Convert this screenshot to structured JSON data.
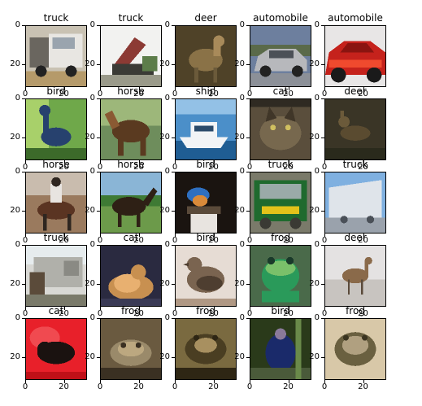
{
  "figure": {
    "x_ticks": [
      "0",
      "20"
    ],
    "y_ticks": [
      "0",
      "20"
    ],
    "panels": [
      {
        "title": "truck",
        "scene": "truck-white",
        "colors": [
          "#c9c2b3",
          "#e8e6e2",
          "#6a665f",
          "#b59a6a"
        ]
      },
      {
        "title": "truck",
        "scene": "dump-truck",
        "colors": [
          "#f2f2f0",
          "#8c3a34",
          "#5d7d4a",
          "#3b3b36"
        ]
      },
      {
        "title": "deer",
        "scene": "deer-brown",
        "colors": [
          "#6b5a3a",
          "#8a7247",
          "#4f4228",
          "#a88a5a"
        ]
      },
      {
        "title": "automobile",
        "scene": "car-silver",
        "colors": [
          "#6d7f9e",
          "#b7b8bc",
          "#4b5057",
          "#8c9098"
        ]
      },
      {
        "title": "automobile",
        "scene": "car-red",
        "colors": [
          "#e8e6e6",
          "#c5221c",
          "#8a1410",
          "#f04a2e"
        ]
      },
      {
        "title": "bird",
        "scene": "ostrich",
        "colors": [
          "#a8d06a",
          "#3c6a2a",
          "#27416e",
          "#6fa84a"
        ]
      },
      {
        "title": "horse",
        "scene": "horse-brown",
        "colors": [
          "#6e8d5c",
          "#5a3a20",
          "#8a5a33",
          "#9db77a"
        ]
      },
      {
        "title": "ship",
        "scene": "boat",
        "colors": [
          "#4b8fc9",
          "#f2f4f6",
          "#1f5d93",
          "#93c1e6"
        ]
      },
      {
        "title": "cat",
        "scene": "cat-dark",
        "colors": [
          "#5a4e3c",
          "#2f2a22",
          "#77684e",
          "#403628"
        ]
      },
      {
        "title": "deer",
        "scene": "deer-forest",
        "colors": [
          "#3a3526",
          "#5a4b30",
          "#2a2a1c",
          "#6b5a3a"
        ]
      },
      {
        "title": "horse",
        "scene": "rider",
        "colors": [
          "#c9bcae",
          "#5a3422",
          "#9a7a5e",
          "#2f2620"
        ]
      },
      {
        "title": "horse",
        "scene": "horse-field",
        "colors": [
          "#8ab5d6",
          "#3e7a34",
          "#2e2015",
          "#6c9a4a"
        ]
      },
      {
        "title": "bird",
        "scene": "bluebird",
        "colors": [
          "#1a1410",
          "#2e6fc0",
          "#d98a3a",
          "#5a4a3a"
        ]
      },
      {
        "title": "truck",
        "scene": "truck-green",
        "colors": [
          "#7a7a6a",
          "#1f6a2e",
          "#e3c21a",
          "#3a3a34"
        ]
      },
      {
        "title": "truck",
        "scene": "trailer",
        "colors": [
          "#7fb0e0",
          "#dfe4ea",
          "#9aa2ac",
          "#4a5058"
        ]
      },
      {
        "title": "truck",
        "scene": "garbage-truck",
        "colors": [
          "#d8d8d4",
          "#8a8a84",
          "#5b4b3a",
          "#b0b0aa"
        ]
      },
      {
        "title": "cat",
        "scene": "cat-orange",
        "colors": [
          "#2a2a40",
          "#c89050",
          "#e8b070",
          "#3a3a55"
        ]
      },
      {
        "title": "bird",
        "scene": "sparrow",
        "colors": [
          "#e6dcd4",
          "#7a6450",
          "#4e3e30",
          "#b09884"
        ]
      },
      {
        "title": "frog",
        "scene": "frog-green",
        "colors": [
          "#4a6a4a",
          "#2a9a5a",
          "#7ac06a",
          "#1a3a2a"
        ]
      },
      {
        "title": "deer",
        "scene": "deer-snow",
        "colors": [
          "#e4e2e2",
          "#8a6a4a",
          "#c8c4c0",
          "#5a4a3a"
        ]
      },
      {
        "title": "cat",
        "scene": "cat-red",
        "colors": [
          "#e8202a",
          "#f04a50",
          "#1a1210",
          "#c01018"
        ]
      },
      {
        "title": "frog",
        "scene": "frog-brown",
        "colors": [
          "#6a5a40",
          "#9a8a6a",
          "#3a3022",
          "#bca880"
        ]
      },
      {
        "title": "frog",
        "scene": "frog-dark",
        "colors": [
          "#7a6a40",
          "#4a3e22",
          "#a89060",
          "#2e2614"
        ]
      },
      {
        "title": "bird",
        "scene": "cassowary",
        "colors": [
          "#4a5a3a",
          "#1a2a6a",
          "#8a7a9a",
          "#2a3a1a"
        ]
      },
      {
        "title": "frog",
        "scene": "frog-hand",
        "colors": [
          "#d8c8a8",
          "#6a6040",
          "#3a3420",
          "#b0a080"
        ]
      }
    ]
  }
}
